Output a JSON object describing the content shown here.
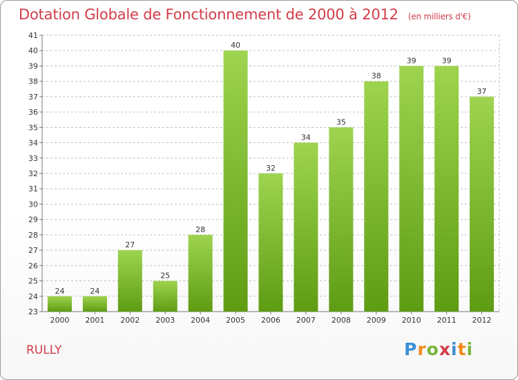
{
  "title": "Dotation Globale de Fonctionnement de 2000 à 2012",
  "subtitle": "(en milliers d'€)",
  "commune": "RULLY",
  "logo": {
    "text": "Proxiti"
  },
  "colors": {
    "title": "#d03c48",
    "bar_top": "#9ed44f",
    "bar_bottom": "#5e9c14",
    "grid": "#bfbfbf"
  },
  "chart_data": {
    "type": "bar",
    "title": "Dotation Globale de Fonctionnement de 2000 à 2012",
    "subtitle": "(en milliers d'€)",
    "xlabel": "",
    "ylabel": "",
    "categories": [
      "2000",
      "2001",
      "2002",
      "2003",
      "2004",
      "2005",
      "2006",
      "2007",
      "2008",
      "2009",
      "2010",
      "2011",
      "2012"
    ],
    "values": [
      24,
      24,
      27,
      25,
      28,
      40,
      32,
      34,
      35,
      38,
      39,
      39,
      37
    ],
    "ylim": [
      23,
      41
    ],
    "yticks": [
      23,
      24,
      25,
      26,
      27,
      28,
      29,
      30,
      31,
      32,
      33,
      34,
      35,
      36,
      37,
      38,
      39,
      40,
      41
    ],
    "grid": "horizontal dashed",
    "data_labels": true,
    "legend": "none"
  }
}
